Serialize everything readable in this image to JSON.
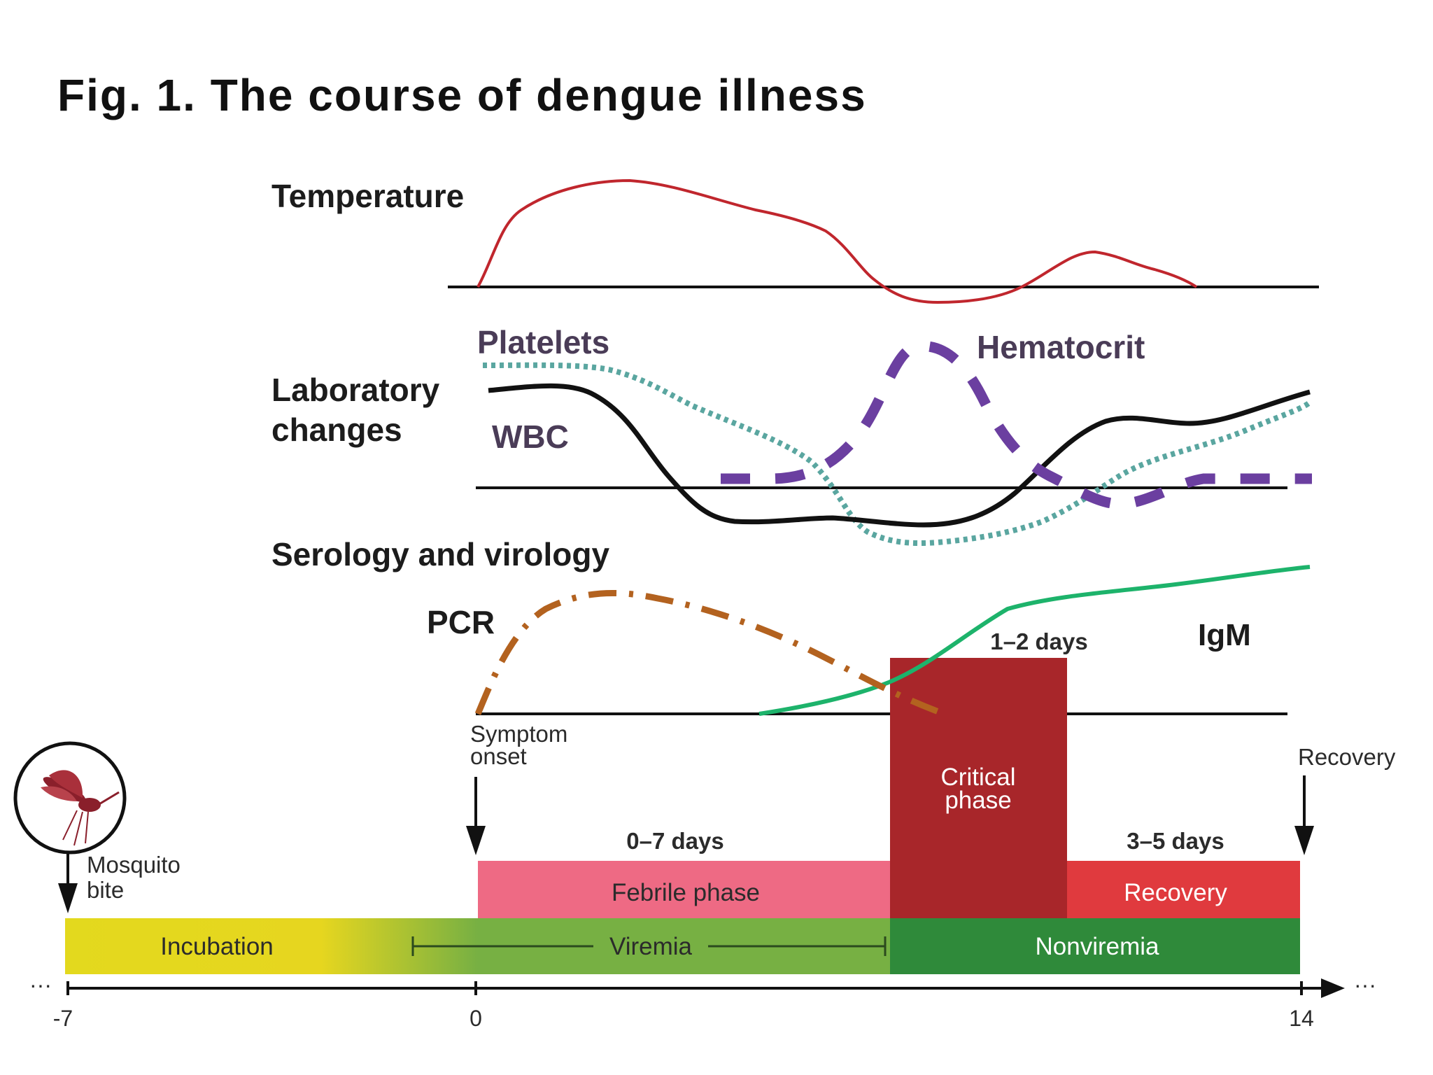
{
  "title": "Fig. 1. The course of dengue illness",
  "sections": {
    "temperature": "Temperature",
    "laboratory_line1": "Laboratory",
    "laboratory_line2": "changes",
    "serology": "Serology and virology"
  },
  "curve_labels": {
    "platelets": "Platelets",
    "hematocrit": "Hematocrit",
    "wbc": "WBC",
    "pcr": "PCR",
    "igm": "IgM"
  },
  "events": {
    "symptom_onset_line1": "Symptom",
    "symptom_onset_line2": "onset",
    "recovery": "Recovery",
    "mosquito_bite_line1": "Mosquito",
    "mosquito_bite_line2": "bite"
  },
  "phases": {
    "febrile": {
      "label": "Febrile phase",
      "duration": "0–7 days"
    },
    "critical": {
      "label_line1": "Critical",
      "label_line2": "phase",
      "duration": "1–2 days"
    },
    "recovery": {
      "label": "Recovery",
      "duration": "3–5 days"
    }
  },
  "bars": {
    "incubation": "Incubation",
    "viremia": "Viremia",
    "nonviremia": "Nonviremia"
  },
  "axis": {
    "ticks": [
      "-7",
      "0",
      "14"
    ],
    "ellipsis_left": "···",
    "ellipsis_right": "···"
  },
  "icons": {
    "mosquito": "mosquito-icon"
  },
  "colors": {
    "temperature": "#c0262d",
    "platelets": "#5aa6a0",
    "hematocrit": "#6b3fa0",
    "wbc": "#111111",
    "pcr": "#b3621f",
    "igm": "#1db36b",
    "febrile": "#ee6a84",
    "critical": "#a8262a",
    "recovery": "#e03a3e",
    "incubation": "#e3d91e",
    "viremia": "#77b043",
    "nonviremia": "#2f8a3a"
  }
}
